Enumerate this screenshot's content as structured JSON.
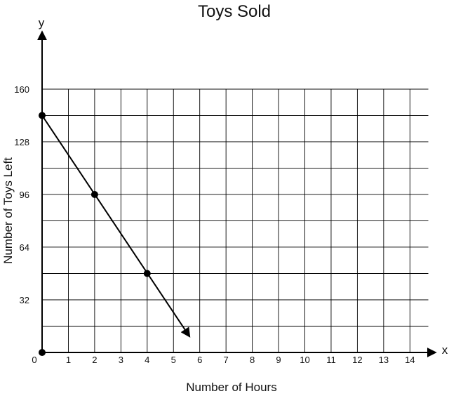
{
  "chart_data": {
    "type": "line",
    "title": "Toys Sold",
    "xlabel": "Number of Hours",
    "ylabel": "Number of Toys Left",
    "x_axis_letter": "x",
    "y_axis_letter": "y",
    "origin_label": "0",
    "xlim": [
      0,
      14.7
    ],
    "ylim": [
      0,
      168
    ],
    "x_ticks": [
      1,
      2,
      3,
      4,
      5,
      6,
      7,
      8,
      9,
      10,
      11,
      12,
      13,
      14
    ],
    "x_tick_labels": [
      "1",
      "2",
      "3",
      "4",
      "5",
      "6",
      "7",
      "8",
      "9",
      "10",
      "11",
      "12",
      "13",
      "14"
    ],
    "y_ticks": [
      32,
      64,
      96,
      128,
      160
    ],
    "y_tick_labels": [
      "32",
      "64",
      "96",
      "128",
      "160"
    ],
    "grid": true,
    "grid_x_step": 1,
    "grid_y_step": 16,
    "series": [
      {
        "points": [
          {
            "x": 0,
            "y": 144
          },
          {
            "x": 2,
            "y": 96
          },
          {
            "x": 4,
            "y": 48
          }
        ],
        "line_end": {
          "x": 5.6,
          "y": 10
        },
        "line_end_arrow": true,
        "color": "#000000"
      }
    ],
    "extra_points": [
      {
        "x": 0,
        "y": 0
      }
    ]
  }
}
